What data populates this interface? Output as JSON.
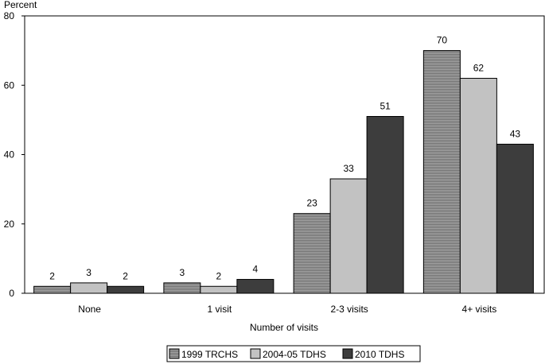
{
  "chart_data": {
    "type": "bar",
    "ylabel": "Percent",
    "xlabel": "Number of visits",
    "ylim": [
      0,
      80
    ],
    "yticks": [
      0,
      20,
      40,
      60,
      80
    ],
    "categories": [
      "None",
      "1 visit",
      "2-3 visits",
      "4+ visits"
    ],
    "series": [
      {
        "name": "1999 TRCHS",
        "values": [
          2,
          3,
          23,
          70
        ],
        "color": "#8c8c8c",
        "pattern": "hstripes"
      },
      {
        "name": "2004-05 TDHS",
        "values": [
          3,
          2,
          33,
          62
        ],
        "color": "#c2c2c2",
        "pattern": "solid"
      },
      {
        "name": "2010 TDHS",
        "values": [
          2,
          4,
          51,
          43
        ],
        "color": "#3d3d3d",
        "pattern": "solid"
      }
    ],
    "legend_position": "bottom-center",
    "grid": false
  }
}
